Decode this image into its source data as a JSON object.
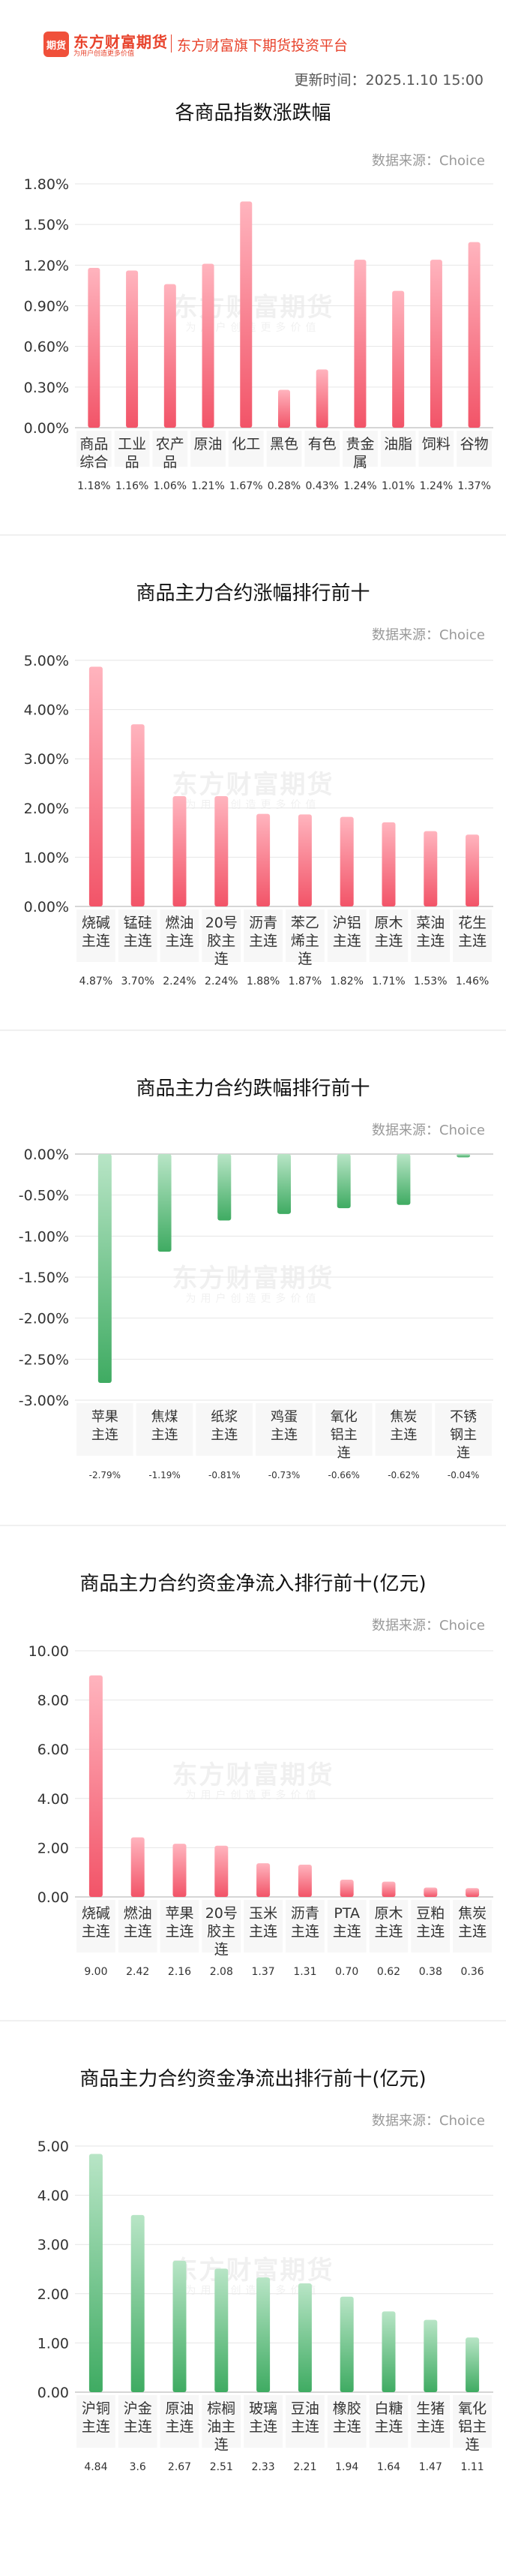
{
  "header": {
    "logo_text": "期货",
    "brand": "东方财富期货",
    "slogan": "为用户创造更多价值",
    "title": "东方财富旗下期货投资平台",
    "updated": "更新时间：2025.1.10 15:00"
  },
  "watermark": {
    "brand": "东方财富期货",
    "slogan": "为用户创造更多价值"
  },
  "colors": {
    "positive": "#f25468",
    "positive_light": "#ffb4be",
    "negative": "#3fab62",
    "negative_light": "#b8e5c6"
  },
  "chart_data": [
    {
      "type": "bar",
      "title": "各商品指数涨跌幅",
      "source": "数据来源：Choice",
      "categories": [
        "商品\n综合",
        "工业\n品",
        "农产\n品",
        "原油",
        "化工",
        "黑色",
        "有色",
        "贵金\n属",
        "油脂",
        "饲料",
        "谷物"
      ],
      "values": [
        1.18,
        1.16,
        1.06,
        1.21,
        1.67,
        0.28,
        0.43,
        1.24,
        1.01,
        1.24,
        1.37
      ],
      "value_labels": [
        "1.18%",
        "1.16%",
        "1.06%",
        "1.21%",
        "1.67%",
        "0.28%",
        "0.43%",
        "1.24%",
        "1.01%",
        "1.24%",
        "1.37%"
      ],
      "ylim": [
        0,
        1.8
      ],
      "yticks": [
        0,
        0.3,
        0.6,
        0.9,
        1.2,
        1.5,
        1.8
      ],
      "ytick_labels": [
        "0.00%",
        "0.30%",
        "0.60%",
        "0.90%",
        "1.20%",
        "1.50%",
        "1.80%"
      ],
      "sign": "positive"
    },
    {
      "type": "bar",
      "title": "商品主力合约涨幅排行前十",
      "source": "数据来源：Choice",
      "categories": [
        "烧碱\n主连",
        "锰硅\n主连",
        "燃油\n主连",
        "20号\n胶主\n连",
        "沥青\n主连",
        "苯乙\n烯主\n连",
        "沪铝\n主连",
        "原木\n主连",
        "菜油\n主连",
        "花生\n主连"
      ],
      "values": [
        4.87,
        3.7,
        2.24,
        2.24,
        1.88,
        1.87,
        1.82,
        1.71,
        1.53,
        1.46
      ],
      "value_labels": [
        "4.87%",
        "3.70%",
        "2.24%",
        "2.24%",
        "1.88%",
        "1.87%",
        "1.82%",
        "1.71%",
        "1.53%",
        "1.46%"
      ],
      "ylim": [
        0,
        5
      ],
      "yticks": [
        0,
        1,
        2,
        3,
        4,
        5
      ],
      "ytick_labels": [
        "0.00%",
        "1.00%",
        "2.00%",
        "3.00%",
        "4.00%",
        "5.00%"
      ],
      "sign": "positive"
    },
    {
      "type": "bar",
      "title": "商品主力合约跌幅排行前十",
      "source": "数据来源：Choice",
      "categories": [
        "苹果\n主连",
        "焦煤\n主连",
        "纸浆\n主连",
        "鸡蛋\n主连",
        "氧化\n铝主\n连",
        "焦炭\n主连",
        "不锈\n钢主\n连"
      ],
      "values": [
        -2.79,
        -1.19,
        -0.81,
        -0.73,
        -0.66,
        -0.62,
        -0.04
      ],
      "value_labels": [
        "-2.79%",
        "-1.19%",
        "-0.81%",
        "-0.73%",
        "-0.66%",
        "-0.62%",
        "-0.04%"
      ],
      "ylim": [
        -3,
        0
      ],
      "yticks": [
        0,
        -0.5,
        -1,
        -1.5,
        -2,
        -2.5,
        -3
      ],
      "ytick_labels": [
        "0.00%",
        "-0.50%",
        "-1.00%",
        "-1.50%",
        "-2.00%",
        "-2.50%",
        "-3.00%"
      ],
      "sign": "negative"
    },
    {
      "type": "bar",
      "title": "商品主力合约资金净流入排行前十(亿元)",
      "source": "数据来源：Choice",
      "categories": [
        "烧碱\n主连",
        "燃油\n主连",
        "苹果\n主连",
        "20号\n胶主\n连",
        "玉米\n主连",
        "沥青\n主连",
        "PTA\n主连",
        "原木\n主连",
        "豆粕\n主连",
        "焦炭\n主连"
      ],
      "values": [
        9.0,
        2.42,
        2.16,
        2.08,
        1.37,
        1.31,
        0.7,
        0.62,
        0.38,
        0.36
      ],
      "value_labels": [
        "9.00",
        "2.42",
        "2.16",
        "2.08",
        "1.37",
        "1.31",
        "0.70",
        "0.62",
        "0.38",
        "0.36"
      ],
      "ylim": [
        0,
        10
      ],
      "yticks": [
        0,
        2,
        4,
        6,
        8,
        10
      ],
      "ytick_labels": [
        "0.00",
        "2.00",
        "4.00",
        "6.00",
        "8.00",
        "10.00"
      ],
      "sign": "positive"
    },
    {
      "type": "bar",
      "title": "商品主力合约资金净流出排行前十(亿元)",
      "source": "数据来源：Choice",
      "categories": [
        "沪铜\n主连",
        "沪金\n主连",
        "原油\n主连",
        "棕榈\n油主\n连",
        "玻璃\n主连",
        "豆油\n主连",
        "橡胶\n主连",
        "白糖\n主连",
        "生猪\n主连",
        "氧化\n铝主\n连"
      ],
      "values": [
        4.84,
        3.6,
        2.67,
        2.51,
        2.33,
        2.21,
        1.94,
        1.64,
        1.47,
        1.11
      ],
      "value_labels": [
        "4.84",
        "3.6",
        "2.67",
        "2.51",
        "2.33",
        "2.21",
        "1.94",
        "1.64",
        "1.47",
        "1.11"
      ],
      "ylim": [
        0,
        5
      ],
      "yticks": [
        0,
        1,
        2,
        3,
        4,
        5
      ],
      "ytick_labels": [
        "0.00",
        "1.00",
        "2.00",
        "3.00",
        "4.00",
        "5.00"
      ],
      "sign": "negative"
    }
  ]
}
